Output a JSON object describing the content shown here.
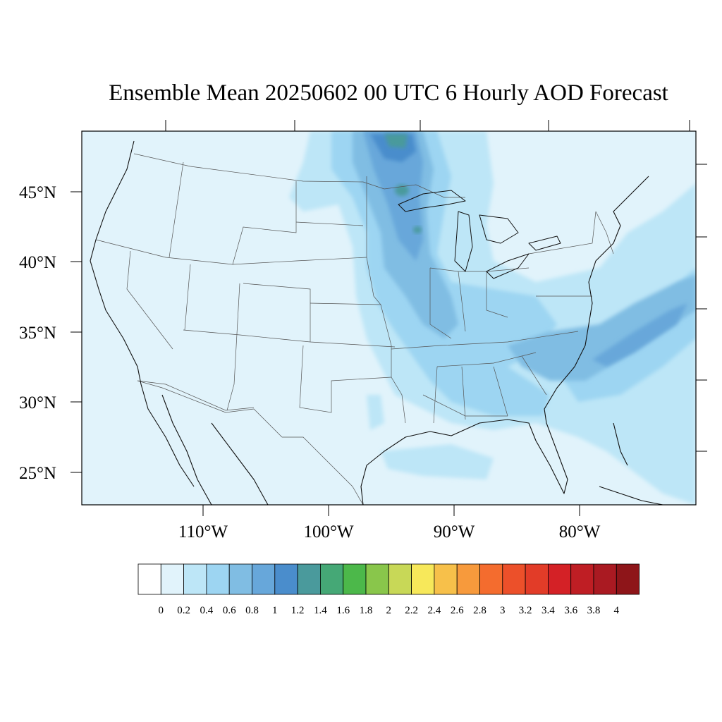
{
  "title": "Ensemble Mean 20250602 00 UTC 6 Hourly AOD Forecast",
  "map": {
    "background": "#e1f3fb",
    "lon_labels": [
      "110°W",
      "100°W",
      "90°W",
      "80°W"
    ],
    "lat_labels": [
      "45°N",
      "40°N",
      "35°N",
      "30°N",
      "25°N"
    ]
  },
  "colorbar": {
    "levels": [
      "0",
      "0.2",
      "0.4",
      "0.6",
      "0.8",
      "1",
      "1.2",
      "1.4",
      "1.6",
      "1.8",
      "2",
      "2.2",
      "2.4",
      "2.6",
      "2.8",
      "3",
      "3.2",
      "3.4",
      "3.6",
      "3.8",
      "4"
    ],
    "colors": [
      "#ffffff",
      "#e1f3fb",
      "#bde6f7",
      "#9dd5f2",
      "#80bde3",
      "#67a7da",
      "#4a8dcc",
      "#4a9a9c",
      "#45a876",
      "#4cb84a",
      "#89c64b",
      "#c8d857",
      "#f7e85a",
      "#f7c04a",
      "#f79a3c",
      "#f46c2e",
      "#ec502a",
      "#e23c28",
      "#d42126",
      "#bf1e24",
      "#aa1a22",
      "#8e1519"
    ]
  },
  "legend_icons": [
    "aod-colorbar"
  ]
}
